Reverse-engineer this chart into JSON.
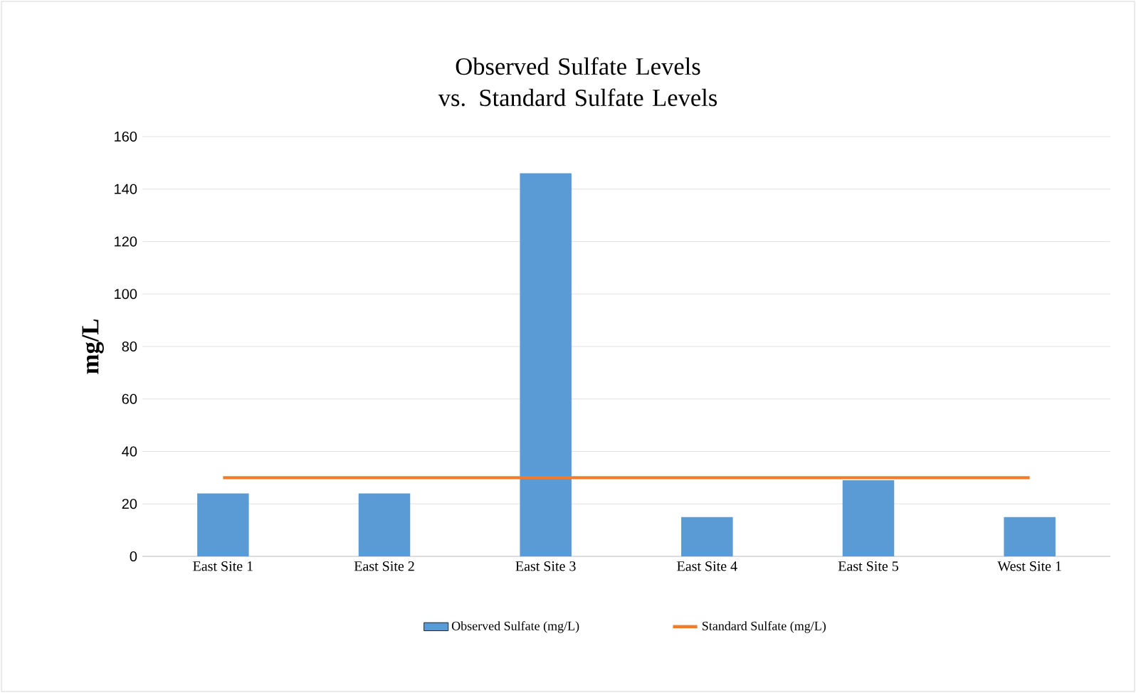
{
  "chart_data": {
    "type": "bar",
    "title": "Observed Sulfate Levels vs. Standard Sulfate Levels",
    "ylabel": "mg/L",
    "categories": [
      "East Site 1",
      "East Site 2",
      "East Site 3",
      "East Site 4",
      "East Site 5",
      "West Site 1"
    ],
    "series": [
      {
        "name": "Observed Sulfate (mg/L)",
        "color": "#5b9bd5",
        "values": [
          24,
          24,
          146,
          15,
          29,
          15
        ]
      },
      {
        "name": "Standard Sulfate (mg/L)",
        "color": "#ed7d31",
        "type": "line",
        "values": [
          30,
          30,
          30,
          30,
          30,
          30
        ]
      }
    ],
    "ylim": [
      0,
      160
    ],
    "yticks": [
      0,
      20,
      40,
      60,
      80,
      100,
      120,
      140,
      160
    ],
    "grid": "y",
    "legend": "bottom"
  }
}
